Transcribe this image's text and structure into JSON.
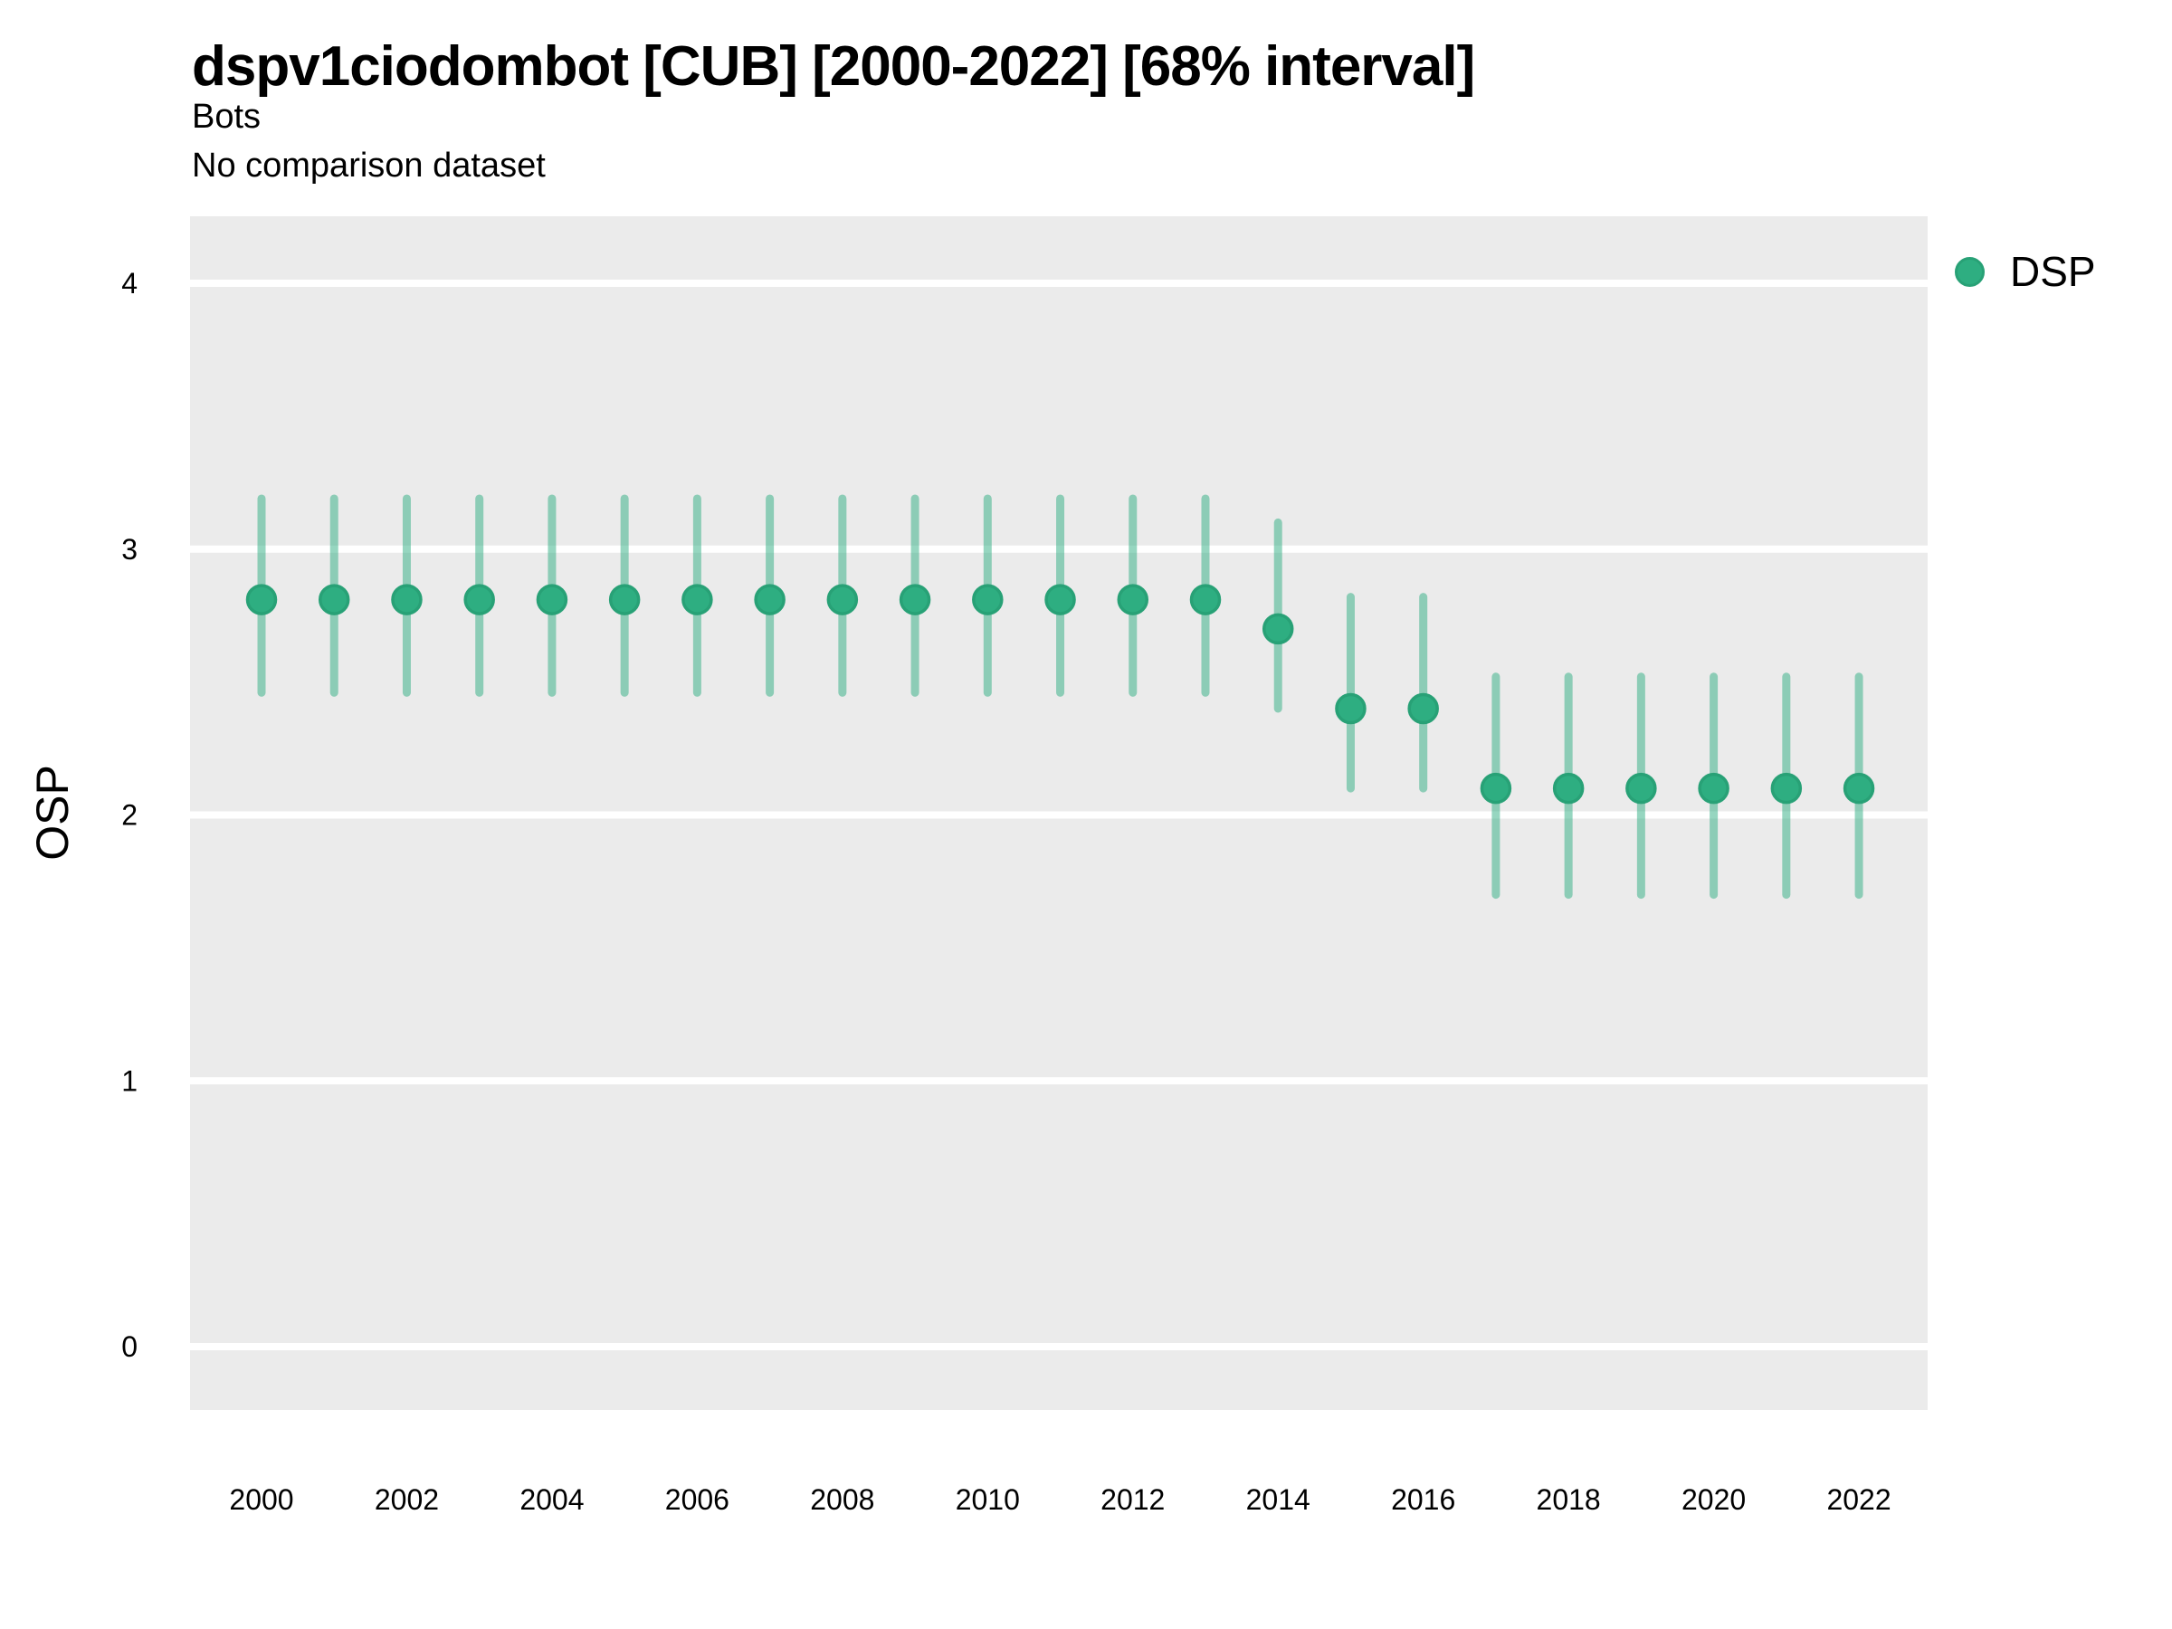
{
  "page": {
    "title": "dspv1ciodombot [CUB] [2000-2022] [68% interval]",
    "subtitle": "Bots",
    "comparison_note": "No comparison dataset"
  },
  "legend": {
    "position": "right-top",
    "items": [
      {
        "label": "DSP",
        "marker": "circle",
        "color": "#2EAE81"
      }
    ]
  },
  "colors": {
    "point_fill": "#2EAE81",
    "point_border": "#28A176",
    "interval_bar": "rgba(46,174,129,0.5)",
    "plot_background": "#EBEBEB",
    "gridline": "#FFFFFF",
    "text": "#000000"
  },
  "chart_data": {
    "type": "scatter",
    "variant": "pointrange-errorbar",
    "title": "dspv1ciodombot [CUB] [2000-2022] [68% interval]",
    "subtitle": "Bots",
    "note": "No comparison dataset",
    "interval_level": "68%",
    "xlabel": "",
    "ylabel": "OSP",
    "grid": "horizontal-major-only",
    "legend_position": "right-top",
    "x": [
      2000,
      2001,
      2002,
      2003,
      2004,
      2005,
      2006,
      2007,
      2008,
      2009,
      2010,
      2011,
      2012,
      2013,
      2014,
      2015,
      2016,
      2017,
      2018,
      2019,
      2020,
      2021,
      2022
    ],
    "series": [
      {
        "name": "DSP",
        "values": [
          2.81,
          2.81,
          2.81,
          2.81,
          2.81,
          2.81,
          2.81,
          2.81,
          2.81,
          2.81,
          2.81,
          2.81,
          2.81,
          2.81,
          2.7,
          2.4,
          2.4,
          2.1,
          2.1,
          2.1,
          2.1,
          2.1,
          2.1
        ],
        "lower": [
          2.46,
          2.46,
          2.46,
          2.46,
          2.46,
          2.46,
          2.46,
          2.46,
          2.46,
          2.46,
          2.46,
          2.46,
          2.46,
          2.46,
          2.4,
          2.1,
          2.1,
          1.7,
          1.7,
          1.7,
          1.7,
          1.7,
          1.7
        ],
        "upper": [
          3.19,
          3.19,
          3.19,
          3.19,
          3.19,
          3.19,
          3.19,
          3.19,
          3.19,
          3.19,
          3.19,
          3.19,
          3.19,
          3.19,
          3.1,
          2.82,
          2.82,
          2.52,
          2.52,
          2.52,
          2.52,
          2.52,
          2.52
        ]
      }
    ],
    "xticks": [
      2000,
      2002,
      2004,
      2006,
      2008,
      2010,
      2012,
      2014,
      2016,
      2018,
      2020,
      2022
    ],
    "yticks": [
      0,
      1,
      2,
      3,
      4
    ],
    "xlim": [
      1999.0,
      2023.0
    ],
    "ylim": [
      -0.24,
      4.25
    ]
  }
}
